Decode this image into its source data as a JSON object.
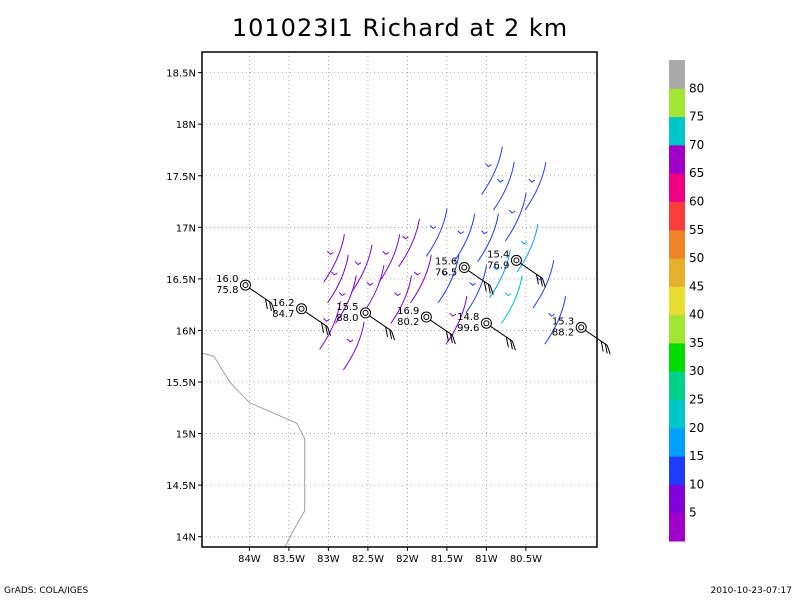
{
  "title": "101023I1 Richard at 2 km",
  "footer": {
    "left": "GrADS: COLA/IGES",
    "right": "2010-10-23-07:17"
  },
  "map": {
    "lon_range": [
      -84.6,
      -79.6
    ],
    "lat_range": [
      13.9,
      18.7
    ],
    "lon_ticks": [
      {
        "lon": -84,
        "label": "84W"
      },
      {
        "lon": -83.5,
        "label": "83.5W"
      },
      {
        "lon": -83,
        "label": "83W"
      },
      {
        "lon": -82.5,
        "label": "82.5W"
      },
      {
        "lon": -82,
        "label": "82W"
      },
      {
        "lon": -81.5,
        "label": "81.5W"
      },
      {
        "lon": -81,
        "label": "81W"
      },
      {
        "lon": -80.5,
        "label": "80.5W"
      }
    ],
    "lat_ticks": [
      {
        "lat": 14,
        "label": "14N"
      },
      {
        "lat": 14.5,
        "label": "14.5N"
      },
      {
        "lat": 15,
        "label": "15N"
      },
      {
        "lat": 15.5,
        "label": "15.5N"
      },
      {
        "lat": 16,
        "label": "16N"
      },
      {
        "lat": 16.5,
        "label": "16.5N"
      },
      {
        "lat": 17,
        "label": "17N"
      },
      {
        "lat": 17.5,
        "label": "17.5N"
      },
      {
        "lat": 18,
        "label": "18N"
      },
      {
        "lat": 18.5,
        "label": "18.5N"
      }
    ],
    "coastline_color": "#a0a0a0",
    "coastline": [
      [
        -84.6,
        15.78
      ],
      [
        -84.45,
        15.75
      ],
      [
        -84.25,
        15.5
      ],
      [
        -84.0,
        15.3
      ],
      [
        -83.7,
        15.2
      ],
      [
        -83.4,
        15.1
      ],
      [
        -83.3,
        14.95
      ],
      [
        -83.3,
        14.25
      ],
      [
        -83.45,
        14.05
      ],
      [
        -83.55,
        13.9
      ]
    ]
  },
  "stations": [
    {
      "lon": -84.05,
      "lat": 16.44,
      "v1": "16.0",
      "v2": "75.8"
    },
    {
      "lon": -83.34,
      "lat": 16.21,
      "v1": "16.2",
      "v2": "84.7"
    },
    {
      "lon": -82.53,
      "lat": 16.17,
      "v1": "15.5",
      "v2": "88.0"
    },
    {
      "lon": -81.76,
      "lat": 16.13,
      "v1": "16.9",
      "v2": "80.2"
    },
    {
      "lon": -81.28,
      "lat": 16.61,
      "v1": "15.6",
      "v2": "76.5"
    },
    {
      "lon": -81.0,
      "lat": 16.07,
      "v1": "14.8",
      "v2": "99.6"
    },
    {
      "lon": -80.62,
      "lat": 16.68,
      "v1": "15.4",
      "v2": "76.9"
    },
    {
      "lon": -79.8,
      "lat": 16.03,
      "v1": "15.3",
      "v2": "88.2"
    }
  ],
  "colorbar": {
    "labels": [
      "5",
      "10",
      "15",
      "20",
      "25",
      "30",
      "35",
      "40",
      "45",
      "50",
      "55",
      "60",
      "65",
      "70",
      "75",
      "80"
    ],
    "colors": [
      "#a000c8",
      "#8200dc",
      "#1e3cff",
      "#00a0ff",
      "#00c8c8",
      "#00d28c",
      "#00dc00",
      "#a0e632",
      "#e6dc32",
      "#e6af2d",
      "#f08228",
      "#fa3c3c",
      "#f00082",
      "#a000c8",
      "#00c8c8",
      "#a0e632",
      "#aaaaaa"
    ]
  },
  "chart_data": {
    "type": "map",
    "title": "101023I1 Richard at 2 km",
    "x_axis": {
      "range": [
        -84.6,
        -79.6
      ],
      "ticks": [
        "84W",
        "83.5W",
        "83W",
        "82.5W",
        "82W",
        "81.5W",
        "81W",
        "80.5W"
      ]
    },
    "y_axis": {
      "range": [
        13.9,
        18.7
      ],
      "ticks": [
        "14N",
        "14.5N",
        "15N",
        "15.5N",
        "16N",
        "16.5N",
        "17N",
        "17.5N",
        "18N",
        "18.5N"
      ]
    },
    "grid": true,
    "legend": "right colorbar",
    "wind_streamlines": [
      {
        "lon": -83.0,
        "lat": 16.7,
        "speed": 6
      },
      {
        "lon": -82.95,
        "lat": 16.5,
        "speed": 6
      },
      {
        "lon": -82.85,
        "lat": 16.3,
        "speed": 6
      },
      {
        "lon": -83.05,
        "lat": 16.05,
        "speed": 6
      },
      {
        "lon": -82.65,
        "lat": 16.6,
        "speed": 6
      },
      {
        "lon": -82.5,
        "lat": 16.4,
        "speed": 7
      },
      {
        "lon": -82.75,
        "lat": 15.85,
        "speed": 6
      },
      {
        "lon": -82.3,
        "lat": 16.7,
        "speed": 7
      },
      {
        "lon": -82.15,
        "lat": 16.3,
        "speed": 8
      },
      {
        "lon": -82.05,
        "lat": 16.85,
        "speed": 8
      },
      {
        "lon": -81.9,
        "lat": 16.5,
        "speed": 9
      },
      {
        "lon": -81.7,
        "lat": 16.95,
        "speed": 10
      },
      {
        "lon": -81.55,
        "lat": 16.5,
        "speed": 10
      },
      {
        "lon": -81.45,
        "lat": 16.1,
        "speed": 8
      },
      {
        "lon": -81.35,
        "lat": 16.9,
        "speed": 12
      },
      {
        "lon": -81.2,
        "lat": 16.4,
        "speed": 13
      },
      {
        "lon": -81.05,
        "lat": 16.9,
        "speed": 14
      },
      {
        "lon": -80.9,
        "lat": 16.55,
        "speed": 17
      },
      {
        "lon": -80.85,
        "lat": 17.4,
        "speed": 13
      },
      {
        "lon": -80.7,
        "lat": 17.1,
        "speed": 13
      },
      {
        "lon": -80.75,
        "lat": 16.3,
        "speed": 21
      },
      {
        "lon": -80.55,
        "lat": 16.8,
        "speed": 15
      },
      {
        "lon": -80.45,
        "lat": 17.4,
        "speed": 13
      },
      {
        "lon": -80.35,
        "lat": 16.45,
        "speed": 14
      },
      {
        "lon": -80.2,
        "lat": 16.1,
        "speed": 14
      },
      {
        "lon": -81.0,
        "lat": 17.55,
        "speed": 13
      }
    ],
    "stations": "see stations"
  }
}
